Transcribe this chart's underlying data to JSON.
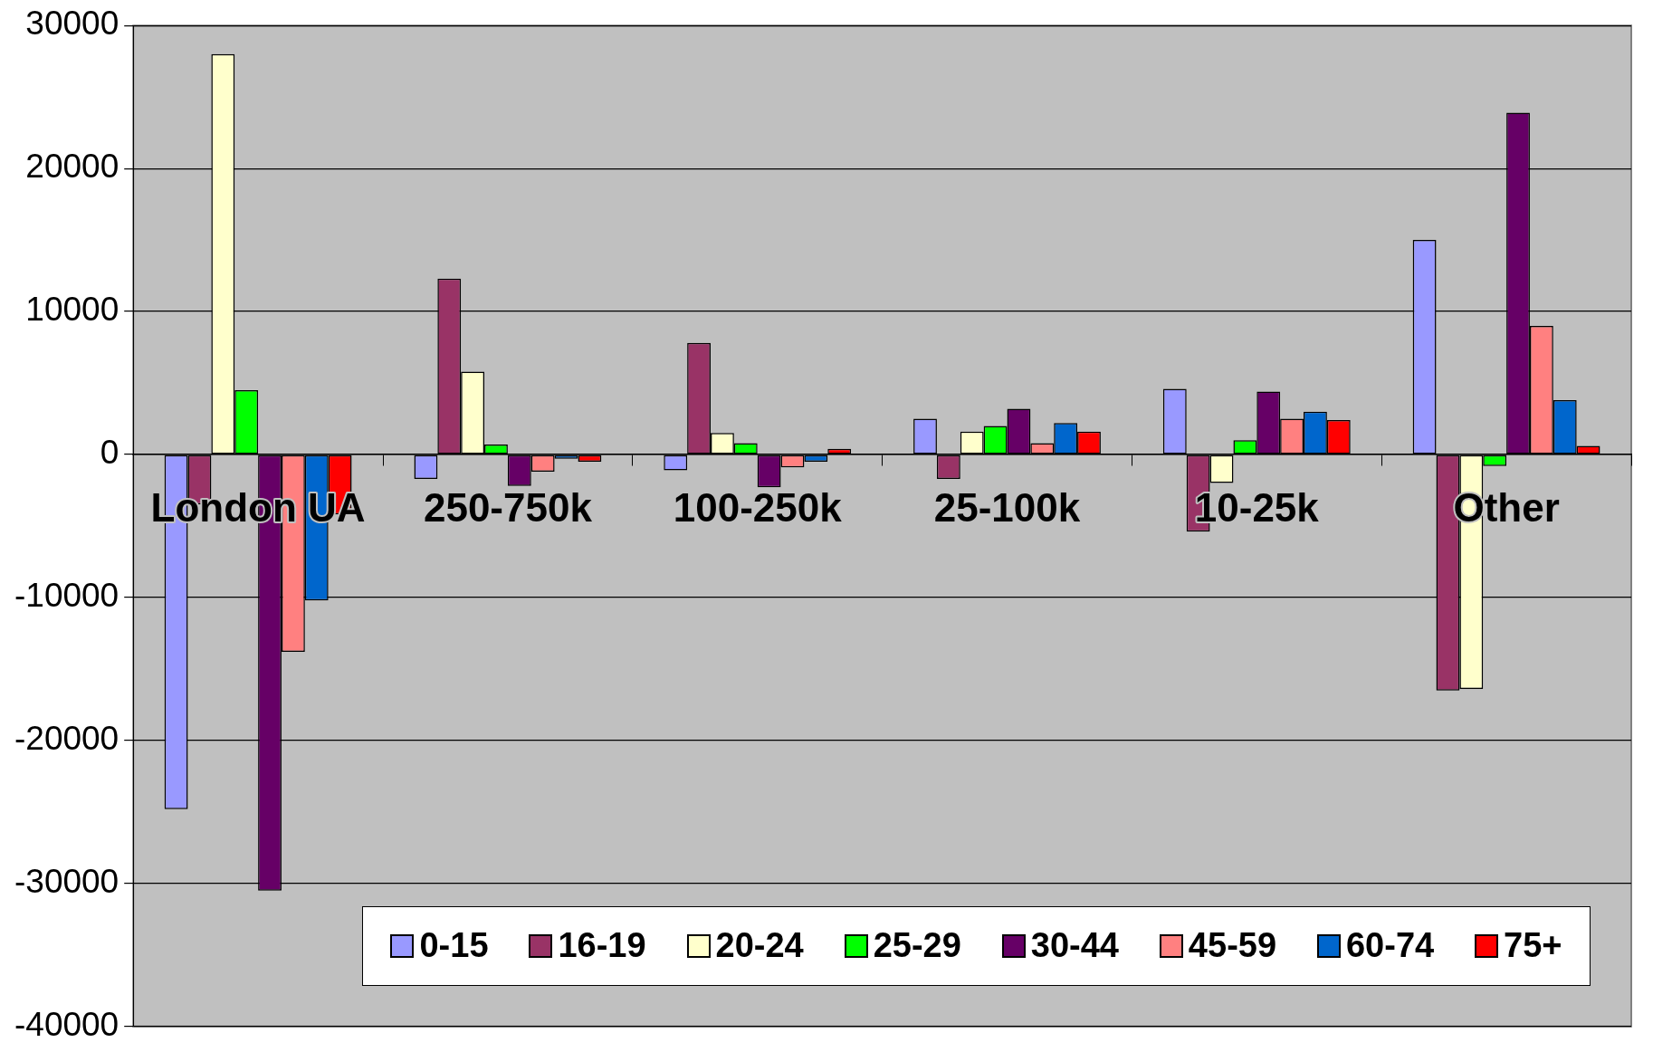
{
  "chart_data": {
    "type": "bar",
    "categories": [
      "London UA",
      "250-750k",
      "100-250k",
      "25-100k",
      "10-25k",
      "Other"
    ],
    "series": [
      {
        "name": "0-15",
        "color": "#9999ff",
        "values": [
          -24800,
          -1700,
          -1100,
          2500,
          4600,
          15000
        ]
      },
      {
        "name": "16-19",
        "color": "#993366",
        "values": [
          -3500,
          12300,
          7800,
          -1700,
          -5400,
          -16500
        ]
      },
      {
        "name": "20-24",
        "color": "#ffffcc",
        "values": [
          28000,
          5800,
          1500,
          1600,
          -2000,
          -16400
        ]
      },
      {
        "name": "25-29",
        "color": "#00ff00",
        "values": [
          4500,
          700,
          800,
          2000,
          1000,
          -800
        ]
      },
      {
        "name": "30-44",
        "color": "#660066",
        "values": [
          -30500,
          -2200,
          -2300,
          3200,
          4400,
          23900
        ]
      },
      {
        "name": "45-59",
        "color": "#ff8080",
        "values": [
          -13800,
          -1200,
          -900,
          800,
          2500,
          9000
        ]
      },
      {
        "name": "60-74",
        "color": "#0066cc",
        "values": [
          -10200,
          -300,
          -500,
          2200,
          3000,
          3800
        ]
      },
      {
        "name": "75+",
        "color": "#ff0000",
        "values": [
          -4200,
          -500,
          400,
          1600,
          2400,
          600
        ]
      }
    ],
    "ylim": [
      -40000,
      30000
    ],
    "yticks": [
      -40000,
      -30000,
      -20000,
      -10000,
      0,
      10000,
      20000,
      30000
    ],
    "grid": "y",
    "legend": "bottom right"
  }
}
